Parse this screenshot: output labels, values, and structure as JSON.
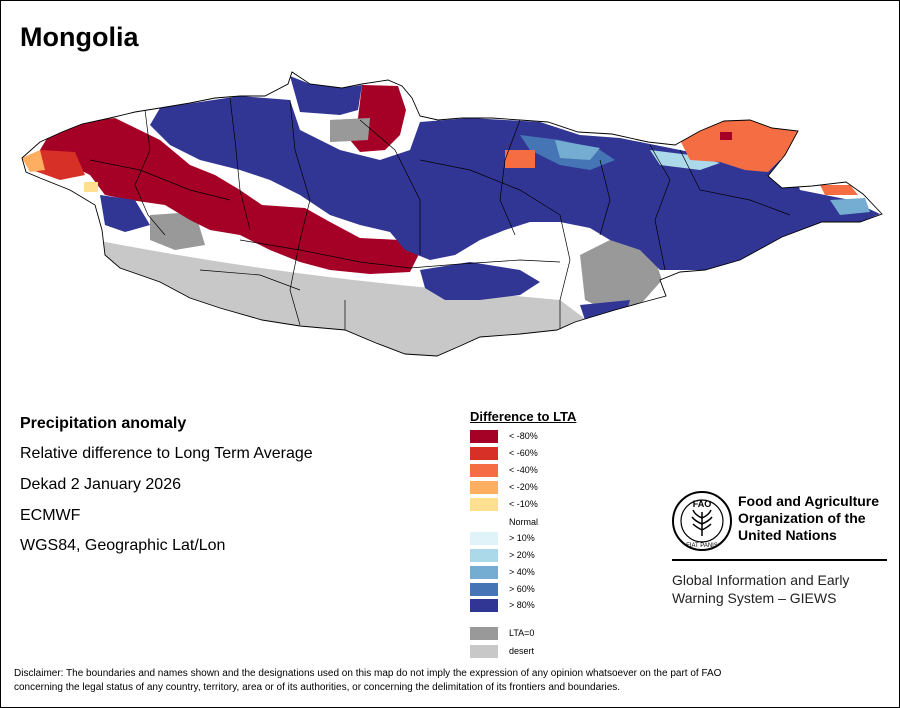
{
  "map": {
    "title": "Mongolia",
    "colors": {
      "country_fill": "#ffffff",
      "country_border": "#000000",
      "desert": "#c8c8c8",
      "lta_zero": "#999999"
    }
  },
  "info": {
    "heading": "Precipitation anomaly",
    "line1": "Relative difference to Long Term Average",
    "line2": "Dekad 2 January 2026",
    "line3": "ECMWF",
    "line4": "WGS84, Geographic Lat/Lon"
  },
  "legend": {
    "title": "Difference to LTA",
    "items": [
      {
        "label": "< -80%",
        "color": "#a50026"
      },
      {
        "label": "< -60%",
        "color": "#d73027"
      },
      {
        "label": "< -40%",
        "color": "#f46d43"
      },
      {
        "label": "< -20%",
        "color": "#fdae61"
      },
      {
        "label": "< -10%",
        "color": "#fee090"
      },
      {
        "label": "> 10%",
        "color": "#e0f3f8"
      },
      {
        "label": "> 20%",
        "color": "#abd9e9"
      },
      {
        "label": "> 40%",
        "color": "#74add1"
      },
      {
        "label": "> 60%",
        "color": "#4575b4"
      },
      {
        "label": "> 80%",
        "color": "#313695"
      }
    ],
    "normal_label": "Normal",
    "lta_zero": {
      "label": "LTA=0",
      "color": "#999999"
    },
    "desert": {
      "label": "desert",
      "color": "#c8c8c8"
    }
  },
  "fao": {
    "logo_top_text": "FAO",
    "logo_ring_text": "FIAT PANIS",
    "name_lines": [
      "Food and Agriculture",
      "Organization of the",
      "United Nations"
    ],
    "giews_lines": [
      "Global Information and Early",
      "Warning System – GIEWS"
    ]
  },
  "disclaimer": {
    "line1": "Disclaimer: The boundaries and names shown and the designations used on this map do not imply the expression of any opinion whatsoever on the part of FAO",
    "line2": "concerning the legal status of any country, territory, area or of its authorities, or concerning the delimitation of its frontiers and boundaries."
  }
}
